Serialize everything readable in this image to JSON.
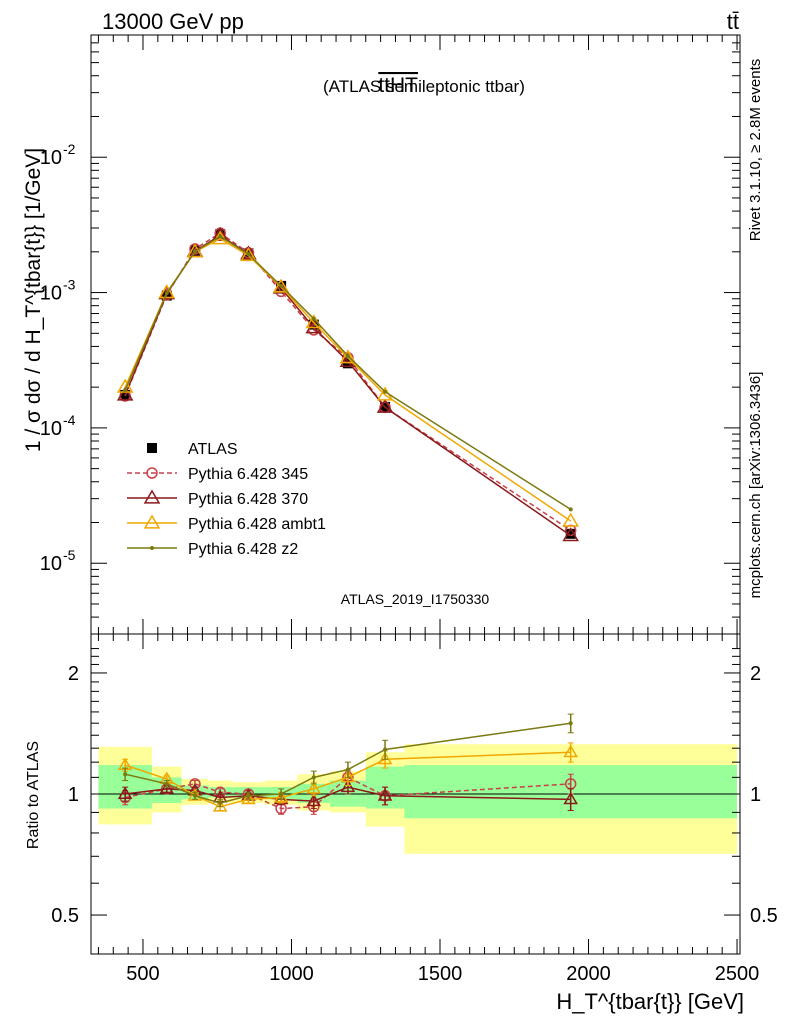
{
  "header": {
    "left": "13000 GeV pp",
    "right": "tt̄"
  },
  "chart_data": [
    {
      "type": "line",
      "title": "ttHT",
      "subtitle": "(ATLAS semileptonic ttbar)",
      "ylabel": "1 / σ dσ / d H_T^{tbar{t}} [1/GeV]",
      "yscale": "log",
      "ylim": [
        3e-06,
        0.08
      ],
      "xlim": [
        325,
        2510
      ],
      "yticks": [
        {
          "value": 1e-05,
          "label": "10^-5"
        },
        {
          "value": 0.0001,
          "label": "10^-4"
        },
        {
          "value": 0.001,
          "label": "10^-3"
        },
        {
          "value": 0.01,
          "label": "10^-2"
        }
      ],
      "x": [
        440,
        580,
        675,
        760,
        855,
        965,
        1075,
        1190,
        1315,
        1940
      ],
      "series": [
        {
          "name": "ATLAS",
          "color": "#000000",
          "marker": "square",
          "values": [
            0.000175,
            0.00095,
            0.00205,
            0.0027,
            0.00195,
            0.00112,
            0.00058,
            0.0003,
            0.000143,
            1.65e-05
          ]
        },
        {
          "name": "Pythia 6.428 345",
          "color": "#c8404a",
          "marker": "circle",
          "dashed": true,
          "values": [
            0.000172,
            0.00096,
            0.0021,
            0.00275,
            0.00197,
            0.00102,
            0.00053,
            0.00033,
            0.000142,
            1.75e-05
          ]
        },
        {
          "name": "Pythia 6.428 370",
          "color": "#8b1a1a",
          "marker": "triangle",
          "values": [
            0.000175,
            0.00098,
            0.00202,
            0.00265,
            0.00193,
            0.00108,
            0.00055,
            0.00031,
            0.000142,
            1.6e-05
          ]
        },
        {
          "name": "Pythia 6.428 ambt1",
          "color": "#f0a800",
          "marker": "triangle",
          "values": [
            0.0002,
            0.001,
            0.002,
            0.0025,
            0.00188,
            0.0011,
            0.0006,
            0.00033,
            0.000175,
            2.05e-05
          ]
        },
        {
          "name": "Pythia 6.428 z2",
          "color": "#7a7a10",
          "marker": "dot",
          "values": [
            0.00019,
            0.00099,
            0.00201,
            0.0026,
            0.00192,
            0.00112,
            0.00064,
            0.00034,
            0.000185,
            2.5e-05
          ]
        }
      ],
      "annotation": "ATLAS_2019_I1750330"
    },
    {
      "type": "line",
      "ylabel": "Ratio to ATLAS",
      "xlabel": "H_T^{tbar{t}} [GeV]",
      "yscale": "log",
      "ylim": [
        0.4,
        2.5
      ],
      "yticks": [
        {
          "value": 0.5,
          "label": "0.5"
        },
        {
          "value": 1,
          "label": "1"
        },
        {
          "value": 2,
          "label": "2"
        }
      ],
      "xticks": [
        500,
        1000,
        1500,
        2000,
        2500
      ],
      "bands": [
        {
          "x0": 350,
          "x1": 530,
          "inner": [
            0.92,
            1.18
          ],
          "outer": [
            0.84,
            1.31
          ]
        },
        {
          "x0": 530,
          "x1": 630,
          "inner": [
            0.95,
            1.1
          ],
          "outer": [
            0.9,
            1.17
          ]
        },
        {
          "x0": 630,
          "x1": 720,
          "inner": [
            0.97,
            1.05
          ],
          "outer": [
            0.94,
            1.09
          ]
        },
        {
          "x0": 720,
          "x1": 800,
          "inner": [
            0.98,
            1.04
          ],
          "outer": [
            0.95,
            1.08
          ]
        },
        {
          "x0": 800,
          "x1": 910,
          "inner": [
            0.98,
            1.04
          ],
          "outer": [
            0.95,
            1.07
          ]
        },
        {
          "x0": 910,
          "x1": 1020,
          "inner": [
            0.97,
            1.04
          ],
          "outer": [
            0.94,
            1.08
          ]
        },
        {
          "x0": 1020,
          "x1": 1130,
          "inner": [
            0.95,
            1.06
          ],
          "outer": [
            0.91,
            1.12
          ]
        },
        {
          "x0": 1130,
          "x1": 1250,
          "inner": [
            0.93,
            1.08
          ],
          "outer": [
            0.9,
            1.14
          ]
        },
        {
          "x0": 1250,
          "x1": 1380,
          "inner": [
            0.92,
            1.17
          ],
          "outer": [
            0.83,
            1.27
          ]
        },
        {
          "x0": 1380,
          "x1": 2500,
          "inner": [
            0.87,
            1.18
          ],
          "outer": [
            0.71,
            1.33
          ]
        }
      ],
      "series": [
        {
          "name": "Pythia 6.428 345",
          "color": "#c8404a",
          "marker": "circle",
          "dashed": true,
          "values": [
            0.98,
            1.03,
            1.06,
            1.01,
            1.0,
            0.92,
            0.93,
            1.1,
            0.99,
            1.06
          ],
          "errors": [
            0.04,
            0.02,
            0.02,
            0.02,
            0.02,
            0.03,
            0.04,
            0.04,
            0.05,
            0.06
          ]
        },
        {
          "name": "Pythia 6.428 370",
          "color": "#8b1a1a",
          "marker": "triangle",
          "values": [
            1.0,
            1.03,
            1.02,
            0.98,
            0.99,
            0.97,
            0.96,
            1.04,
            0.99,
            0.97
          ],
          "errors": [
            0.04,
            0.02,
            0.02,
            0.02,
            0.02,
            0.03,
            0.04,
            0.04,
            0.05,
            0.06
          ]
        },
        {
          "name": "Pythia 6.428 ambt1",
          "color": "#f0a800",
          "marker": "triangle",
          "values": [
            1.18,
            1.09,
            0.99,
            0.93,
            0.97,
            0.98,
            1.03,
            1.1,
            1.22,
            1.27
          ],
          "errors": [
            0.04,
            0.02,
            0.02,
            0.02,
            0.02,
            0.03,
            0.04,
            0.05,
            0.06,
            0.07
          ]
        },
        {
          "name": "Pythia 6.428 z2",
          "color": "#7a7a10",
          "marker": "dot",
          "values": [
            1.12,
            1.06,
            0.99,
            0.95,
            0.99,
            1.0,
            1.1,
            1.15,
            1.29,
            1.5
          ],
          "errors": [
            0.04,
            0.02,
            0.02,
            0.02,
            0.02,
            0.03,
            0.04,
            0.05,
            0.07,
            0.08
          ]
        }
      ]
    }
  ],
  "side_labels": {
    "rivet": "Rivet 3.1.10, ≥ 2.8M events",
    "mcplots": "mcplots.cern.ch [arXiv:1306.3436]"
  }
}
